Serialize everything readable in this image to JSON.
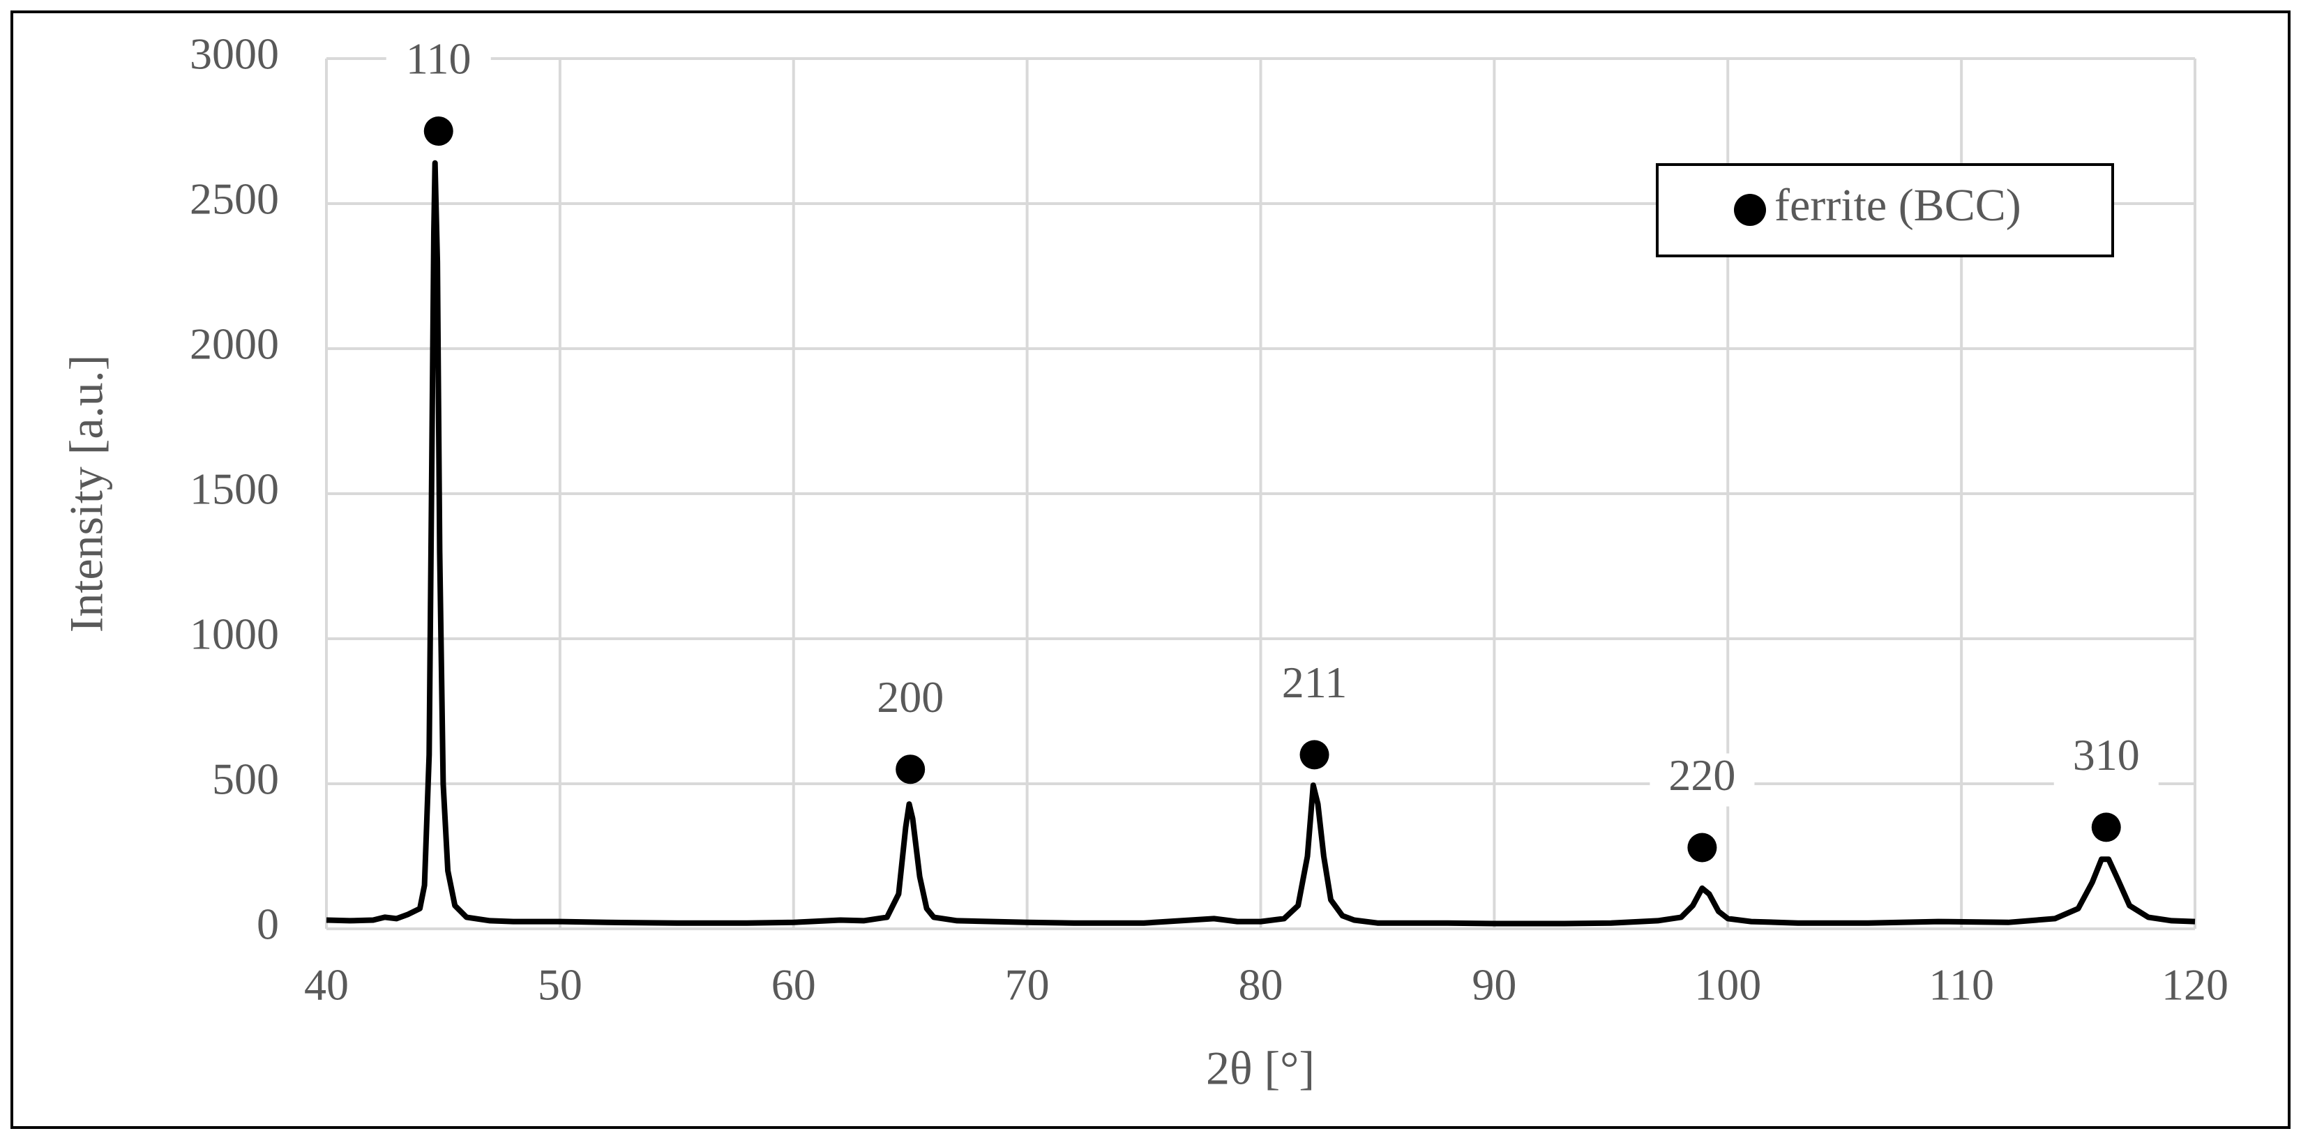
{
  "chart_data": {
    "type": "line",
    "xlabel": "2θ [°]",
    "ylabel": "Intensity [a.u.]",
    "xlim": [
      40,
      120
    ],
    "xticks": [
      40,
      50,
      60,
      70,
      80,
      90,
      100,
      110,
      120
    ],
    "ylim": [
      0,
      3000
    ],
    "yticks": [
      0,
      500,
      1000,
      1500,
      2000,
      2500,
      3000
    ],
    "grid": true,
    "legend": "upper right",
    "series": [
      {
        "color": "#000000",
        "x": [
          40,
          41,
          42,
          42.5,
          43,
          43.5,
          44,
          44.2,
          44.4,
          44.5,
          44.6,
          44.65,
          44.75,
          44.85,
          45.0,
          45.2,
          45.5,
          46,
          47,
          48,
          50,
          52,
          55,
          58,
          60,
          62,
          63,
          64,
          64.5,
          64.8,
          64.95,
          65.1,
          65.4,
          65.7,
          66,
          67,
          70,
          72,
          75,
          78,
          79,
          80,
          81,
          81.6,
          82,
          82.25,
          82.45,
          82.7,
          83,
          83.5,
          84,
          85,
          88,
          90,
          93,
          95,
          97,
          98,
          98.5,
          98.9,
          99.2,
          99.6,
          100,
          101,
          103,
          106,
          109,
          112,
          114,
          115,
          115.6,
          116,
          116.3,
          116.7,
          117.2,
          118,
          119,
          120
        ],
        "values": [
          30,
          28,
          30,
          40,
          35,
          50,
          70,
          150,
          600,
          1500,
          2400,
          2640,
          2300,
          1300,
          500,
          200,
          80,
          40,
          28,
          25,
          25,
          22,
          20,
          20,
          22,
          30,
          28,
          40,
          120,
          350,
          430,
          380,
          180,
          70,
          40,
          28,
          22,
          20,
          20,
          35,
          25,
          25,
          35,
          80,
          250,
          495,
          430,
          250,
          100,
          45,
          30,
          20,
          20,
          18,
          18,
          20,
          28,
          40,
          80,
          140,
          120,
          60,
          35,
          25,
          20,
          20,
          25,
          22,
          35,
          70,
          160,
          240,
          240,
          170,
          80,
          40,
          28,
          25
        ]
      },
      {
        "name": "ferrite (BCC)",
        "type": "scatter",
        "color": "#000000",
        "x": [
          44.8,
          65.0,
          82.3,
          98.9,
          116.2
        ],
        "values": [
          2750,
          550,
          600,
          280,
          350
        ],
        "labels": [
          "110",
          "200",
          "211",
          "220",
          "310"
        ]
      }
    ]
  }
}
